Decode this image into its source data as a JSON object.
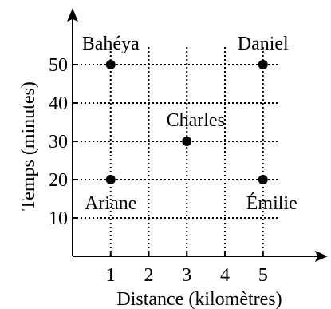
{
  "chart_data": {
    "type": "scatter",
    "xlabel": "Distance (kilomètres)",
    "ylabel": "Temps (minutes)",
    "xlim": [
      0,
      5.8
    ],
    "ylim": [
      0,
      58
    ],
    "x_ticks": [
      1,
      2,
      3,
      4,
      5
    ],
    "y_ticks": [
      10,
      20,
      30,
      40,
      50
    ],
    "grid": true,
    "points": [
      {
        "label": "Bahéya",
        "x": 1,
        "y": 50
      },
      {
        "label": "Daniel",
        "x": 5,
        "y": 50
      },
      {
        "label": "Charles",
        "x": 3,
        "y": 30
      },
      {
        "label": "Ariane",
        "x": 1,
        "y": 20
      },
      {
        "label": "Émilie",
        "x": 5,
        "y": 20
      }
    ]
  }
}
